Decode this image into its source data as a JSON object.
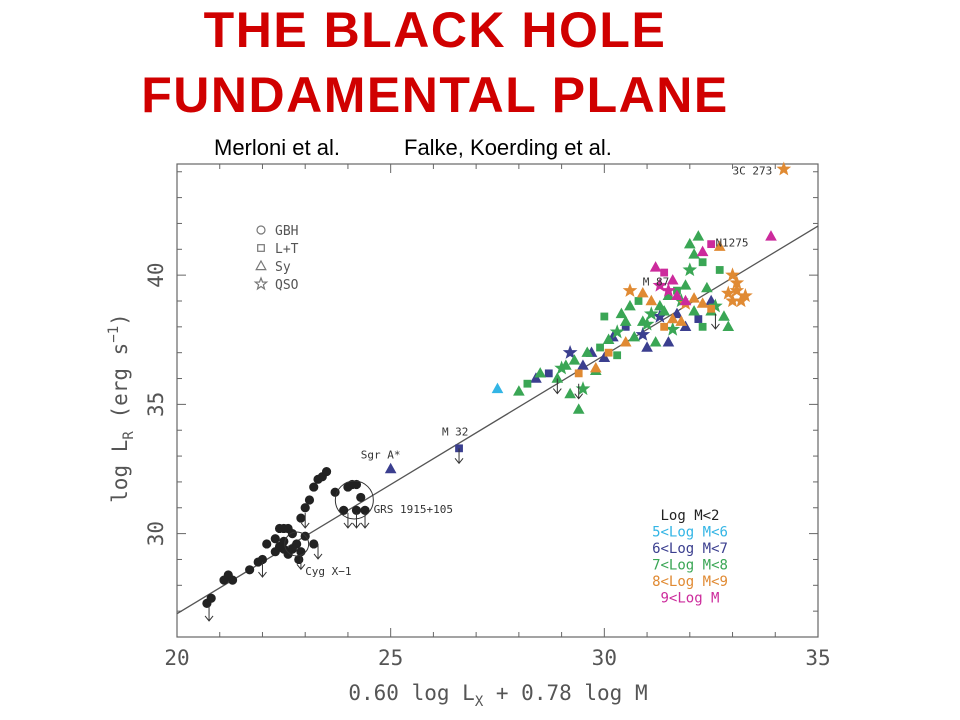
{
  "slide": {
    "title_line1": "THE BLACK HOLE",
    "title_line2": "FUNDAMENTAL PLANE",
    "credit_left": "Merloni et al.",
    "credit_right": "Falke, Koerding et al."
  },
  "colors": {
    "title": "#d00000",
    "mass_lt2": "#222222",
    "mass_5_6": "#33b5e5",
    "mass_6_7": "#3b3f8f",
    "mass_7_8": "#3aa655",
    "mass_8_9": "#e08a33",
    "mass_gt9": "#cc2b9c"
  },
  "chart_data": {
    "type": "scatter",
    "title": "",
    "xlabel": "0.60 log L",
    "xlabel_sub": "X",
    "xlabel_tail": " + 0.78 log M",
    "ylabel": "log L",
    "ylabel_sub": "R",
    "ylabel_tail": " (erg s",
    "ylabel_exp": "−1",
    "ylabel_close": ")",
    "xlim": [
      20,
      35
    ],
    "ylim": [
      26,
      44.3
    ],
    "xticks": [
      "20",
      "25",
      "30",
      "35"
    ],
    "yticks": [
      "30",
      "35",
      "40"
    ],
    "fit_line": {
      "x": [
        20,
        35
      ],
      "y": [
        26.9,
        41.9
      ]
    },
    "shape_legend": [
      {
        "symbol": "circle",
        "label": "GBH"
      },
      {
        "symbol": "square",
        "label": "L+T"
      },
      {
        "symbol": "triangle",
        "label": "Sy"
      },
      {
        "symbol": "star",
        "label": "QSO"
      }
    ],
    "color_legend": [
      {
        "label": "Log M<2",
        "color": "#222222"
      },
      {
        "label": "5<Log M<6",
        "color": "#33b5e5"
      },
      {
        "label": "6<Log M<7",
        "color": "#3b3f8f"
      },
      {
        "label": "7<Log M<8",
        "color": "#3aa655"
      },
      {
        "label": "8<Log M<9",
        "color": "#e08a33"
      },
      {
        "label": "9<Log M",
        "color": "#cc2b9c"
      }
    ],
    "annotations": [
      {
        "text": "3C 273",
        "x": 33.0,
        "y": 43.9
      },
      {
        "text": "N1275",
        "x": 32.6,
        "y": 41.1
      },
      {
        "text": "M 87",
        "x": 30.9,
        "y": 39.6
      },
      {
        "text": "M 32",
        "x": 26.2,
        "y": 33.8
      },
      {
        "text": "Sgr A*",
        "x": 24.3,
        "y": 32.9
      },
      {
        "text": "GRS 1915+105",
        "x": 24.6,
        "y": 30.8
      },
      {
        "text": "Cyg X−1",
        "x": 23.0,
        "y": 28.4
      }
    ],
    "series": [
      {
        "name": "Log M<2",
        "symbol": "circle",
        "color": "#222222",
        "points": [
          [
            20.7,
            27.3
          ],
          [
            20.8,
            27.5
          ],
          [
            21.1,
            28.2
          ],
          [
            21.2,
            28.4
          ],
          [
            21.3,
            28.2
          ],
          [
            21.7,
            28.6
          ],
          [
            21.9,
            28.9
          ],
          [
            22.0,
            29.0
          ],
          [
            22.1,
            29.6
          ],
          [
            22.3,
            29.8
          ],
          [
            22.4,
            29.5
          ],
          [
            22.5,
            29.7
          ],
          [
            22.6,
            29.2
          ],
          [
            22.7,
            29.4
          ],
          [
            22.8,
            29.6
          ],
          [
            22.85,
            29.0
          ],
          [
            22.9,
            29.3
          ],
          [
            23.0,
            29.9
          ],
          [
            22.4,
            30.2
          ],
          [
            22.5,
            30.2
          ],
          [
            22.6,
            30.2
          ],
          [
            22.7,
            30.0
          ],
          [
            22.9,
            30.6
          ],
          [
            23.0,
            31.0
          ],
          [
            23.1,
            31.3
          ],
          [
            23.2,
            31.8
          ],
          [
            23.3,
            32.1
          ],
          [
            23.4,
            32.2
          ],
          [
            23.5,
            32.4
          ],
          [
            23.7,
            31.6
          ],
          [
            23.9,
            30.9
          ],
          [
            24.0,
            31.8
          ],
          [
            24.1,
            31.9
          ],
          [
            24.2,
            31.9
          ],
          [
            24.3,
            31.4
          ],
          [
            24.2,
            30.9
          ],
          [
            24.4,
            30.9
          ],
          [
            22.5,
            29.4
          ],
          [
            22.3,
            29.3
          ],
          [
            23.2,
            29.6
          ]
        ]
      },
      {
        "name": "5<Log M<6",
        "symbol": "triangle",
        "color": "#33b5e5",
        "points": [
          [
            27.5,
            35.6
          ]
        ]
      },
      {
        "name": "6<Log M<7",
        "symbol": "mixed",
        "color": "#3b3f8f",
        "points": [
          [
            25.0,
            32.5
          ],
          [
            26.6,
            33.3
          ],
          [
            28.4,
            36.0
          ],
          [
            29.2,
            37.0
          ],
          [
            29.7,
            37.0
          ],
          [
            30.2,
            37.6
          ],
          [
            30.5,
            38.0
          ],
          [
            31.0,
            37.2
          ],
          [
            31.3,
            38.4
          ],
          [
            31.7,
            38.5
          ],
          [
            31.9,
            38.0
          ],
          [
            32.2,
            38.3
          ],
          [
            32.5,
            39.0
          ],
          [
            30.9,
            37.7
          ],
          [
            29.5,
            36.5
          ],
          [
            30.0,
            36.8
          ],
          [
            28.7,
            36.2
          ],
          [
            31.5,
            37.4
          ]
        ]
      },
      {
        "name": "7<Log M<8",
        "symbol": "mixed",
        "color": "#3aa655",
        "points": [
          [
            28.0,
            35.5
          ],
          [
            28.2,
            35.8
          ],
          [
            28.5,
            36.2
          ],
          [
            29.0,
            36.4
          ],
          [
            29.3,
            36.7
          ],
          [
            29.6,
            37.0
          ],
          [
            29.9,
            37.2
          ],
          [
            30.1,
            37.5
          ],
          [
            30.3,
            37.8
          ],
          [
            30.4,
            38.5
          ],
          [
            30.6,
            38.8
          ],
          [
            30.8,
            39.0
          ],
          [
            30.9,
            38.2
          ],
          [
            31.1,
            38.5
          ],
          [
            31.3,
            38.8
          ],
          [
            31.5,
            39.2
          ],
          [
            31.7,
            39.4
          ],
          [
            31.9,
            39.6
          ],
          [
            32.0,
            40.2
          ],
          [
            32.1,
            40.8
          ],
          [
            32.2,
            41.5
          ],
          [
            32.3,
            40.5
          ],
          [
            32.4,
            39.5
          ],
          [
            32.6,
            38.8
          ],
          [
            32.8,
            38.4
          ],
          [
            32.9,
            38.0
          ],
          [
            32.3,
            38.0
          ],
          [
            31.4,
            38.6
          ],
          [
            31.6,
            37.9
          ],
          [
            31.2,
            37.4
          ],
          [
            30.7,
            37.6
          ],
          [
            30.3,
            36.9
          ],
          [
            29.8,
            36.3
          ],
          [
            29.5,
            35.6
          ],
          [
            29.2,
            35.4
          ],
          [
            28.9,
            36.0
          ],
          [
            30.0,
            38.4
          ],
          [
            30.5,
            38.2
          ],
          [
            31.8,
            39.0
          ],
          [
            32.1,
            38.6
          ],
          [
            32.5,
            38.6
          ],
          [
            32.7,
            40.2
          ],
          [
            32.0,
            41.2
          ],
          [
            31.0,
            38.1
          ],
          [
            29.4,
            34.8
          ],
          [
            29.1,
            36.5
          ]
        ]
      },
      {
        "name": "8<Log M<9",
        "symbol": "mixed",
        "color": "#e08a33",
        "points": [
          [
            29.8,
            36.4
          ],
          [
            30.1,
            37.0
          ],
          [
            30.5,
            37.4
          ],
          [
            30.6,
            39.4
          ],
          [
            30.9,
            39.3
          ],
          [
            31.1,
            39.0
          ],
          [
            31.4,
            38.0
          ],
          [
            31.6,
            38.3
          ],
          [
            31.9,
            38.9
          ],
          [
            32.1,
            39.1
          ],
          [
            32.3,
            38.9
          ],
          [
            32.5,
            38.7
          ],
          [
            32.9,
            39.3
          ],
          [
            33.0,
            39.0
          ],
          [
            33.1,
            39.4
          ],
          [
            33.2,
            39.0
          ],
          [
            33.3,
            39.2
          ],
          [
            33.0,
            40.0
          ],
          [
            33.1,
            39.7
          ],
          [
            32.7,
            41.1
          ],
          [
            34.2,
            44.1
          ],
          [
            29.4,
            36.2
          ],
          [
            31.8,
            38.2
          ]
        ]
      },
      {
        "name": "9<Log M",
        "symbol": "mixed",
        "color": "#cc2b9c",
        "points": [
          [
            31.2,
            40.3
          ],
          [
            31.4,
            40.1
          ],
          [
            31.6,
            39.8
          ],
          [
            31.5,
            39.4
          ],
          [
            31.9,
            39.0
          ],
          [
            32.3,
            40.9
          ],
          [
            32.5,
            41.2
          ],
          [
            33.9,
            41.5
          ],
          [
            31.3,
            39.6
          ],
          [
            31.7,
            39.2
          ]
        ]
      }
    ]
  }
}
